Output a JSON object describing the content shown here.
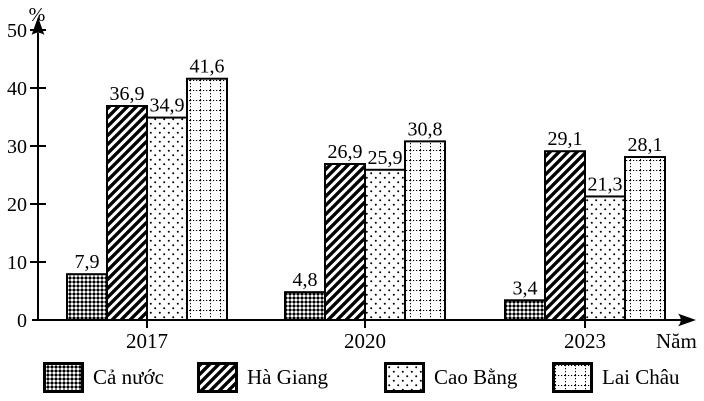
{
  "colors": {
    "ink": "#000000",
    "background": "#ffffff"
  },
  "chart_data": {
    "type": "bar",
    "title": "",
    "ylabel": "%",
    "xlabel": "Năm",
    "ylim": [
      0,
      50
    ],
    "yticks": [
      0,
      10,
      20,
      30,
      40,
      50
    ],
    "categories": [
      "2017",
      "2020",
      "2023"
    ],
    "series": [
      {
        "name": "Cả nước",
        "pattern": "dense-checker",
        "values": [
          7.9,
          4.8,
          3.4
        ]
      },
      {
        "name": "Hà Giang",
        "pattern": "diagonal-stripes",
        "values": [
          36.9,
          26.9,
          29.1
        ]
      },
      {
        "name": "Cao Bằng",
        "pattern": "sparse-dots",
        "values": [
          34.9,
          25.9,
          21.3
        ]
      },
      {
        "name": "Lai Châu",
        "pattern": "dotted-grid",
        "values": [
          41.6,
          30.8,
          28.1
        ]
      }
    ],
    "value_labels": true,
    "decimal_separator": ",",
    "legend_position": "bottom",
    "grid": false
  }
}
